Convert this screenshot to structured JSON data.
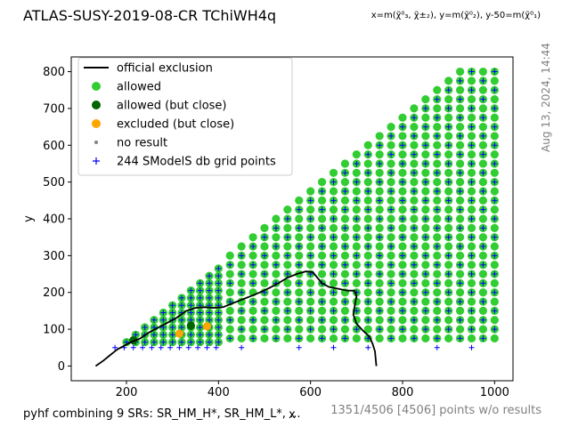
{
  "header": {
    "title": "ATLAS-SUSY-2019-08-CR TChiWH4q",
    "axes_note": "x=m(χ̃⁰₃, χ̃±₂), y=m(χ̃⁰₂), y-50=m(χ̃⁰₁)"
  },
  "footer": {
    "combination": "pyhf combining 9 SRs: SR_HM_H*, SR_HM_L*, ...",
    "no_results": "1351/4506 [4506] points w/o results",
    "timestamp": "Aug 13, 2024, 14:44"
  },
  "chart_data": {
    "type": "scatter",
    "xlabel": "x",
    "ylabel": "y",
    "xlim": [
      80,
      1040
    ],
    "ylim": [
      -40,
      840
    ],
    "xticks": [
      200,
      400,
      600,
      800,
      1000
    ],
    "yticks": [
      0,
      100,
      200,
      300,
      400,
      500,
      600,
      700,
      800
    ],
    "legend_position": "upper-left",
    "legend": [
      {
        "label": "official exclusion",
        "kind": "line",
        "color": "#000000"
      },
      {
        "label": "allowed",
        "kind": "dot",
        "color": "#32cd32"
      },
      {
        "label": "allowed (but close)",
        "kind": "dot",
        "color": "#006400"
      },
      {
        "label": "excluded (but close)",
        "kind": "dot",
        "color": "#ffa500"
      },
      {
        "label": "no result",
        "kind": "small-dot",
        "color": "#808080"
      },
      {
        "label": "244 SModelS db grid points",
        "kind": "plus",
        "color": "#0000ff"
      }
    ],
    "colors": {
      "allowed": "#32cd32",
      "allowed_close": "#006400",
      "excluded_close": "#ffa500",
      "grid_point": "#0000ff",
      "exclusion": "#000000"
    },
    "allowed_region": {
      "low_mass_grid": {
        "x_from": 200,
        "x_to": 400,
        "x_step": 20,
        "y_from": 65,
        "y_step": 20,
        "max_y_offset": -130
      },
      "high_mass_grid": {
        "x_from": 425,
        "x_to": 1000,
        "x_step": 25,
        "y_from": 75,
        "y_step": 25,
        "max_y_offset": -200
      },
      "low_mass_cap": {
        "x": [
          200,
          220,
          240,
          260,
          280,
          300,
          320,
          340,
          360,
          380,
          400
        ],
        "y_max": [
          65,
          85,
          105,
          125,
          145,
          165,
          185,
          205,
          225,
          245,
          265
        ]
      },
      "high_mass_cap": {
        "x": [
          425,
          450,
          475,
          500,
          525,
          550,
          575,
          600,
          625,
          650,
          675,
          700,
          725,
          750,
          775,
          800,
          825,
          850,
          875,
          900,
          925,
          950,
          975,
          1000
        ],
        "y_max": [
          300,
          325,
          350,
          375,
          400,
          425,
          450,
          475,
          500,
          525,
          550,
          575,
          600,
          625,
          650,
          675,
          700,
          725,
          750,
          775,
          800,
          800,
          800,
          800
        ]
      }
    },
    "allowed_close_points": [
      {
        "x": 215,
        "y": 70
      },
      {
        "x": 340,
        "y": 110
      }
    ],
    "excluded_close_points": [
      {
        "x": 315,
        "y": 88
      },
      {
        "x": 375,
        "y": 108
      }
    ],
    "grid_points_extra": [
      {
        "x": 175,
        "y": 50
      },
      {
        "x": 195,
        "y": 50
      },
      {
        "x": 215,
        "y": 50
      },
      {
        "x": 235,
        "y": 50
      },
      {
        "x": 255,
        "y": 50
      },
      {
        "x": 275,
        "y": 50
      },
      {
        "x": 295,
        "y": 50
      },
      {
        "x": 315,
        "y": 50
      },
      {
        "x": 335,
        "y": 50
      },
      {
        "x": 355,
        "y": 50
      },
      {
        "x": 375,
        "y": 50
      },
      {
        "x": 395,
        "y": 50
      },
      {
        "x": 450,
        "y": 50
      },
      {
        "x": 575,
        "y": 50
      },
      {
        "x": 650,
        "y": 50
      },
      {
        "x": 725,
        "y": 50
      },
      {
        "x": 875,
        "y": 50
      },
      {
        "x": 950,
        "y": 50
      }
    ],
    "exclusion_curve": {
      "x": [
        133,
        150,
        165,
        180,
        195,
        210,
        230,
        250,
        270,
        290,
        310,
        330,
        350,
        370,
        390,
        410,
        430,
        450,
        470,
        490,
        510,
        530,
        550,
        570,
        590,
        605,
        615,
        625,
        640,
        660,
        680,
        695,
        700,
        697,
        693,
        700,
        715,
        728,
        735,
        740,
        743
      ],
      "y": [
        0,
        15,
        30,
        45,
        55,
        65,
        75,
        92,
        105,
        118,
        132,
        150,
        158,
        160,
        158,
        160,
        170,
        180,
        190,
        200,
        212,
        225,
        240,
        250,
        257,
        255,
        240,
        225,
        215,
        210,
        205,
        205,
        190,
        170,
        140,
        115,
        95,
        80,
        60,
        40,
        0
      ]
    }
  }
}
